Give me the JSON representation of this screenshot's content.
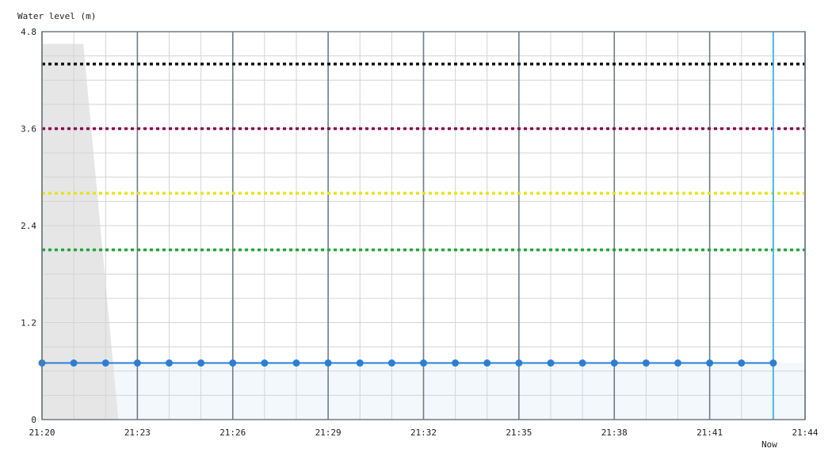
{
  "chart_data": {
    "type": "line",
    "ylabel": "Water level (m)",
    "ylim": [
      0,
      4.8
    ],
    "y_ticks": [
      "0",
      "1.2",
      "2.4",
      "3.6",
      "4.8"
    ],
    "y_tick_values": [
      0,
      1.2,
      2.4,
      3.6,
      4.8
    ],
    "x_range_minutes": [
      "21:20",
      "21:44"
    ],
    "x_ticks": [
      "21:20",
      "21:23",
      "21:26",
      "21:29",
      "21:32",
      "21:35",
      "21:38",
      "21:41",
      "21:44"
    ],
    "now_label": "Now",
    "now_time": "21:43",
    "grid": true,
    "series": [
      {
        "color": "#2a7fd4",
        "x": [
          "21:20",
          "21:21",
          "21:22",
          "21:23",
          "21:24",
          "21:25",
          "21:26",
          "21:27",
          "21:28",
          "21:29",
          "21:30",
          "21:31",
          "21:32",
          "21:33",
          "21:34",
          "21:35",
          "21:36",
          "21:37",
          "21:38",
          "21:39",
          "21:40",
          "21:41",
          "21:42",
          "21:43"
        ],
        "values": [
          0.7,
          0.7,
          0.7,
          0.7,
          0.7,
          0.7,
          0.7,
          0.7,
          0.7,
          0.7,
          0.7,
          0.7,
          0.7,
          0.7,
          0.7,
          0.7,
          0.7,
          0.7,
          0.7,
          0.7,
          0.7,
          0.7,
          0.7,
          0.7
        ]
      }
    ],
    "thresholds": [
      {
        "value": 4.4,
        "color": "#111111"
      },
      {
        "value": 3.6,
        "color": "#8a0a4f"
      },
      {
        "value": 2.8,
        "color": "#e8e21c"
      },
      {
        "value": 2.1,
        "color": "#22a63a"
      }
    ],
    "shaded_area": {
      "color": "#e6e6e6",
      "points": [
        {
          "x": "21:20",
          "y": 4.65
        },
        {
          "x": "21:21:18",
          "y": 4.65
        },
        {
          "x": "21:22:24",
          "y": 0
        },
        {
          "x": "21:20",
          "y": 0
        }
      ]
    },
    "fill_color": "#f3f8fd"
  }
}
